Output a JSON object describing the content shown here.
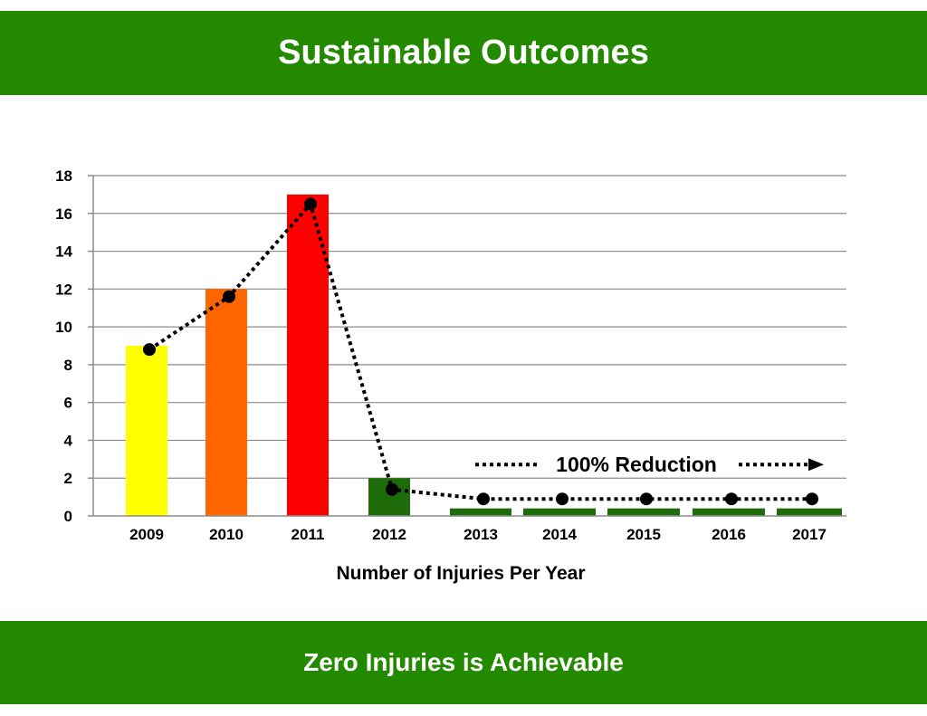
{
  "header": {
    "title": "Sustainable Outcomes"
  },
  "footer": {
    "tagline": "Zero Injuries is Achievable"
  },
  "colors": {
    "banner": "#238A00",
    "bars": [
      "#FFFF00",
      "#FF6600",
      "#FF0000",
      "#1E6B0A",
      "#1E6B0A",
      "#1E6B0A",
      "#1E6B0A",
      "#1E6B0A",
      "#1E6B0A"
    ],
    "line": "#000000",
    "grid": "#8C8C8C"
  },
  "chart_data": {
    "type": "bar",
    "categories": [
      "2009",
      "2010",
      "2011",
      "2012",
      "2013",
      "2014",
      "2015",
      "2016",
      "2017"
    ],
    "series": [
      {
        "type": "bar",
        "values": [
          9,
          12,
          17,
          2,
          0.4,
          0.4,
          0.4,
          0.4,
          0.4
        ]
      },
      {
        "type": "line",
        "style": "dotted",
        "markers": "circle",
        "values": [
          8.8,
          11.6,
          16.5,
          1.4,
          0.9,
          0.9,
          0.9,
          0.9,
          0.9
        ]
      }
    ],
    "xlabel": "Number of Injuries Per Year",
    "ylabel": "",
    "ylim": [
      0,
      18
    ],
    "yticks": [
      0,
      2,
      4,
      6,
      8,
      10,
      12,
      14,
      16,
      18
    ],
    "grid": true,
    "annotation": {
      "text": "100% Reduction",
      "arrow": "right",
      "y": 2
    }
  }
}
